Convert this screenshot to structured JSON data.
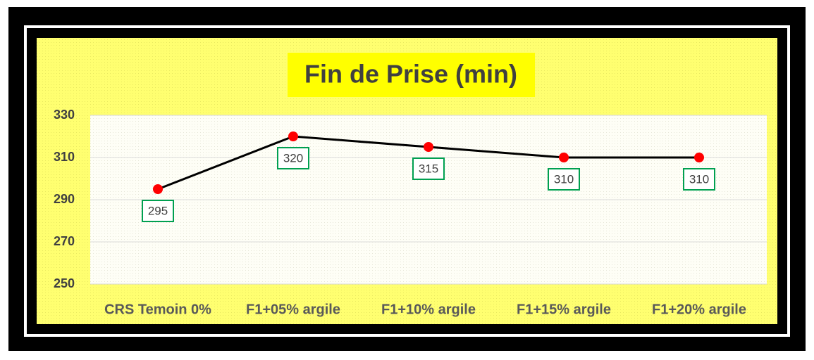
{
  "chart_data": {
    "type": "line",
    "title": "Fin de Prise (min)",
    "categories": [
      "CRS Temoin  0%",
      "F1+05% argile",
      "F1+10% argile",
      "F1+15% argile",
      "F1+20% argile"
    ],
    "values": [
      295,
      320,
      315,
      310,
      310
    ],
    "line_color": "#000000",
    "marker_color": "#ff0000",
    "label_border_color": "#00a050",
    "ylim": [
      250,
      330
    ],
    "yticks": [
      250,
      270,
      290,
      310,
      330
    ],
    "grid": true
  }
}
